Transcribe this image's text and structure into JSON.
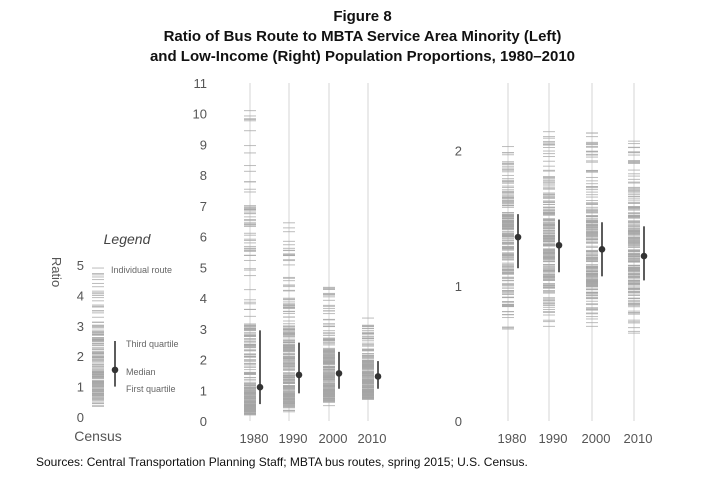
{
  "figure": {
    "label": "Figure 8",
    "title_line1": "Ratio of Bus Route to MBTA Service Area Minority (Left)",
    "title_line2": "and Low-Income (Right) Population Proportions, 1980–2010",
    "source": "Sources: Central Transportation Planning Staff; MBTA bus routes, spring 2015; U.S. Census."
  },
  "legend": {
    "title": "Legend",
    "ylabel": "Ratio",
    "xlabel": "Census",
    "yticks": [
      0,
      1,
      2,
      3,
      4,
      5
    ],
    "individual_label": "Individual route",
    "q3_label": "Third quartile",
    "median_label": "Median",
    "q1_label": "First quartile",
    "example": {
      "q1": 1.0,
      "median": 1.55,
      "q3": 2.5,
      "min": 0.35,
      "max": 4.9
    }
  },
  "colors": {
    "route_tick": "#a6a6a6",
    "guide_line": "#e3e3e3",
    "summary": "#333333",
    "axis_text": "#555555"
  },
  "chart_data": [
    {
      "type": "scatter",
      "title": "Minority",
      "xlabel": "",
      "ylabel": "Ratio",
      "categories": [
        "1980",
        "1990",
        "2000",
        "2010"
      ],
      "ylim": [
        0,
        11
      ],
      "yticks": [
        0,
        1,
        2,
        3,
        4,
        5,
        6,
        7,
        8,
        9,
        10,
        11
      ],
      "series": [
        {
          "category": "1980",
          "min": 0.2,
          "q1": 0.55,
          "median": 1.1,
          "q3": 2.95,
          "max": 10.1
        },
        {
          "category": "1990",
          "min": 0.3,
          "q1": 0.9,
          "median": 1.5,
          "q3": 2.55,
          "max": 6.45
        },
        {
          "category": "2000",
          "min": 0.5,
          "q1": 1.05,
          "median": 1.55,
          "q3": 2.25,
          "max": 4.35
        },
        {
          "category": "2010",
          "min": 0.7,
          "q1": 1.05,
          "median": 1.45,
          "q3": 1.95,
          "max": 3.35
        }
      ]
    },
    {
      "type": "scatter",
      "title": "Low-Income",
      "xlabel": "",
      "ylabel": "",
      "categories": [
        "1980",
        "1990",
        "2000",
        "2010"
      ],
      "ylim": [
        0,
        2.5
      ],
      "yticks": [
        0,
        1,
        2
      ],
      "series": [
        {
          "category": "1980",
          "min": 0.68,
          "q1": 1.13,
          "median": 1.36,
          "q3": 1.53,
          "max": 2.03
        },
        {
          "category": "1990",
          "min": 0.7,
          "q1": 1.1,
          "median": 1.3,
          "q3": 1.49,
          "max": 2.14
        },
        {
          "category": "2000",
          "min": 0.7,
          "q1": 1.07,
          "median": 1.27,
          "q3": 1.47,
          "max": 2.13
        },
        {
          "category": "2010",
          "min": 0.65,
          "q1": 1.04,
          "median": 1.22,
          "q3": 1.44,
          "max": 2.07
        }
      ]
    }
  ]
}
